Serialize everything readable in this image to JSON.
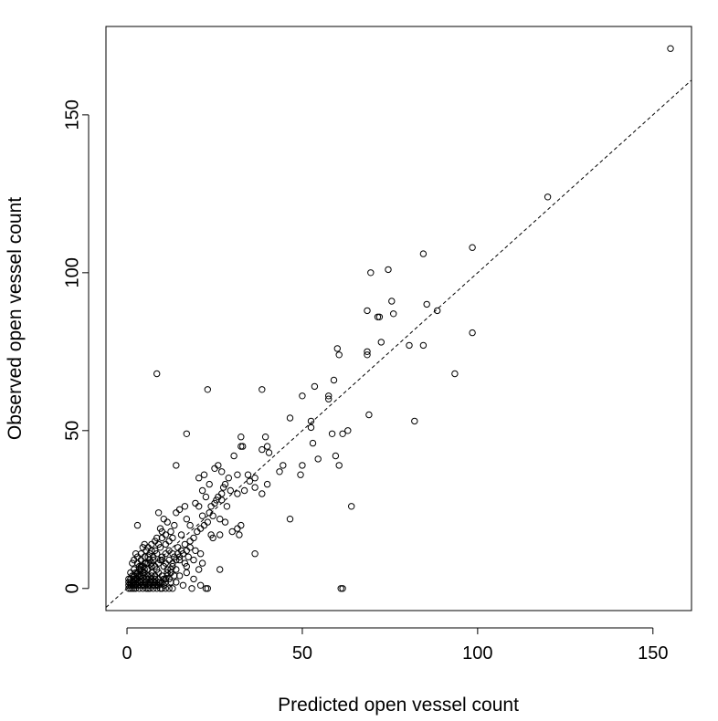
{
  "chart_data": {
    "type": "scatter",
    "xlabel": "Predicted open vessel count",
    "ylabel": "Observed open vessel count",
    "xlim": [
      -6,
      161
    ],
    "ylim": [
      -7,
      178
    ],
    "xticks": [
      0,
      50,
      100,
      150
    ],
    "yticks": [
      0,
      50,
      100,
      150
    ],
    "grid": false,
    "marker": "open-circle",
    "reference_line": {
      "type": "identity",
      "style": "dashed"
    },
    "series": [
      {
        "points": [
          [
            155,
            171
          ],
          [
            120,
            124
          ],
          [
            98.5,
            108
          ],
          [
            84.5,
            106
          ],
          [
            98.5,
            81
          ],
          [
            93.5,
            68
          ],
          [
            69.5,
            100
          ],
          [
            74.5,
            101
          ],
          [
            85.5,
            90
          ],
          [
            88.5,
            88
          ],
          [
            75.5,
            91
          ],
          [
            76,
            87
          ],
          [
            68.5,
            88
          ],
          [
            71.5,
            86
          ],
          [
            72,
            86
          ],
          [
            72.5,
            78
          ],
          [
            68.5,
            75
          ],
          [
            68.5,
            74
          ],
          [
            80.5,
            77
          ],
          [
            84.5,
            77
          ],
          [
            82,
            53
          ],
          [
            69,
            55
          ],
          [
            64,
            26
          ],
          [
            61,
            0
          ],
          [
            61.5,
            0
          ],
          [
            60,
            76
          ],
          [
            60.5,
            74
          ],
          [
            59,
            66
          ],
          [
            53.5,
            64
          ],
          [
            57.5,
            61
          ],
          [
            57.5,
            60
          ],
          [
            50,
            61
          ],
          [
            52.5,
            53
          ],
          [
            52.5,
            51
          ],
          [
            58.5,
            49
          ],
          [
            61.5,
            49
          ],
          [
            63,
            50
          ],
          [
            59.5,
            42
          ],
          [
            60.5,
            39
          ],
          [
            54.5,
            41
          ],
          [
            53,
            46
          ],
          [
            50,
            39
          ],
          [
            49.5,
            36
          ],
          [
            46.5,
            54
          ],
          [
            46.5,
            22
          ],
          [
            38.5,
            63
          ],
          [
            39.5,
            48
          ],
          [
            38.5,
            44
          ],
          [
            40,
            45
          ],
          [
            40.5,
            43
          ],
          [
            38.5,
            30
          ],
          [
            40,
            33
          ],
          [
            43.5,
            37
          ],
          [
            44.5,
            39
          ],
          [
            36.5,
            35
          ],
          [
            36.5,
            11
          ],
          [
            8.5,
            68
          ],
          [
            23,
            63
          ],
          [
            17,
            49
          ],
          [
            14,
            39
          ],
          [
            32.5,
            48
          ],
          [
            33,
            45
          ],
          [
            32.5,
            45
          ],
          [
            30.5,
            42
          ],
          [
            26,
            39
          ],
          [
            25,
            38
          ],
          [
            27,
            37
          ],
          [
            34.5,
            36
          ],
          [
            35,
            34
          ],
          [
            31.5,
            36
          ],
          [
            33.5,
            31
          ],
          [
            36.5,
            32
          ],
          [
            29.5,
            31
          ],
          [
            31.5,
            30
          ],
          [
            27.5,
            32
          ],
          [
            22,
            36
          ],
          [
            20.5,
            35
          ],
          [
            23.5,
            33
          ],
          [
            21.5,
            31
          ],
          [
            22.5,
            29
          ],
          [
            25.5,
            28
          ],
          [
            27,
            28
          ],
          [
            28.5,
            26
          ],
          [
            23.5,
            24
          ],
          [
            19.5,
            27
          ],
          [
            20.5,
            26
          ],
          [
            21.5,
            23
          ],
          [
            24.5,
            23
          ],
          [
            26.5,
            22
          ],
          [
            28,
            21
          ],
          [
            31.5,
            19
          ],
          [
            32.5,
            20
          ],
          [
            32,
            17
          ],
          [
            30,
            18
          ],
          [
            26.5,
            17
          ],
          [
            24.5,
            16
          ],
          [
            24,
            17
          ],
          [
            26.5,
            6
          ],
          [
            21,
            11
          ],
          [
            19.5,
            12
          ],
          [
            21.5,
            8
          ],
          [
            20.5,
            6
          ],
          [
            21,
            1
          ],
          [
            22.5,
            0
          ],
          [
            23,
            0
          ],
          [
            19,
            3
          ],
          [
            18.5,
            0
          ],
          [
            16,
            1
          ],
          [
            16.5,
            8
          ],
          [
            17,
            5
          ],
          [
            17.5,
            10
          ],
          [
            18,
            15
          ],
          [
            18,
            20
          ],
          [
            17,
            22
          ],
          [
            16.5,
            26
          ],
          [
            15,
            25
          ],
          [
            14,
            24
          ],
          [
            13.5,
            20
          ],
          [
            12.5,
            18
          ],
          [
            11.5,
            21
          ],
          [
            10.5,
            22
          ],
          [
            9,
            24
          ],
          [
            9.5,
            19
          ],
          [
            10,
            16
          ],
          [
            11,
            14
          ],
          [
            12,
            12
          ],
          [
            13,
            11
          ],
          [
            14.5,
            13
          ],
          [
            15,
            9
          ],
          [
            14,
            6
          ],
          [
            13.5,
            4
          ],
          [
            12.5,
            2
          ],
          [
            11.5,
            5
          ],
          [
            11,
            8
          ],
          [
            10,
            10
          ],
          [
            9.5,
            13
          ],
          [
            8.5,
            16
          ],
          [
            8,
            12
          ],
          [
            7.5,
            9
          ],
          [
            7,
            14
          ],
          [
            6.5,
            11
          ],
          [
            6,
            8
          ],
          [
            5.5,
            12
          ],
          [
            5,
            10
          ],
          [
            4.5,
            13
          ],
          [
            3,
            20
          ],
          [
            4,
            9
          ],
          [
            3.5,
            7
          ],
          [
            2.5,
            11
          ],
          [
            2,
            6
          ],
          [
            1.5,
            8
          ],
          [
            1,
            5
          ],
          [
            0.5,
            3
          ],
          [
            0.5,
            0
          ],
          [
            1,
            1
          ],
          [
            1.5,
            2
          ],
          [
            2,
            0
          ],
          [
            2.5,
            3
          ],
          [
            3,
            1
          ],
          [
            3.5,
            4
          ],
          [
            4,
            2
          ],
          [
            4.5,
            5
          ],
          [
            5,
            1
          ],
          [
            5.5,
            3
          ],
          [
            6,
            0
          ],
          [
            6.5,
            2
          ],
          [
            7,
            4
          ],
          [
            7.5,
            1
          ],
          [
            8,
            3
          ],
          [
            8.5,
            6
          ],
          [
            9,
            2
          ],
          [
            9.5,
            0
          ],
          [
            10,
            4
          ],
          [
            10.5,
            1
          ],
          [
            11,
            3
          ],
          [
            12,
            0
          ],
          [
            12.5,
            6
          ],
          [
            13,
            7
          ],
          [
            7,
            7
          ],
          [
            6,
            6
          ],
          [
            5,
            6
          ],
          [
            4,
            6
          ],
          [
            3,
            5
          ],
          [
            2,
            4
          ],
          [
            1,
            3
          ],
          [
            2,
            2
          ],
          [
            3,
            3
          ],
          [
            4,
            4
          ],
          [
            5,
            5
          ],
          [
            6,
            4
          ],
          [
            7,
            3
          ],
          [
            8,
            2
          ],
          [
            9,
            1
          ],
          [
            10,
            0
          ],
          [
            11,
            0
          ],
          [
            1.5,
            0
          ],
          [
            2.5,
            0
          ],
          [
            3.5,
            0
          ],
          [
            4.5,
            0
          ],
          [
            5.5,
            0
          ],
          [
            6.5,
            0
          ],
          [
            7.5,
            0
          ],
          [
            8.5,
            0
          ],
          [
            1,
            2
          ],
          [
            2,
            1
          ],
          [
            3,
            2
          ],
          [
            4,
            1
          ],
          [
            5,
            2
          ],
          [
            6,
            1
          ],
          [
            7,
            2
          ],
          [
            8,
            1
          ],
          [
            9,
            3
          ],
          [
            1.5,
            4
          ],
          [
            2.5,
            5
          ],
          [
            3.5,
            6
          ],
          [
            4.5,
            7
          ],
          [
            5.5,
            8
          ],
          [
            6.5,
            9
          ],
          [
            7.5,
            10
          ],
          [
            8.5,
            11
          ],
          [
            9.5,
            9
          ],
          [
            10.5,
            7
          ],
          [
            11.5,
            6
          ],
          [
            12.5,
            5
          ],
          [
            13.5,
            10
          ],
          [
            14.5,
            11
          ],
          [
            15.5,
            12
          ],
          [
            16.5,
            14
          ],
          [
            15.5,
            17
          ],
          [
            13,
            16
          ],
          [
            12,
            15
          ],
          [
            11,
            17
          ],
          [
            10,
            18
          ],
          [
            9,
            14
          ],
          [
            8,
            15
          ],
          [
            7,
            12
          ],
          [
            6,
            13
          ],
          [
            5,
            14
          ],
          [
            4,
            11
          ],
          [
            3,
            10
          ],
          [
            2,
            9
          ],
          [
            3,
            8
          ],
          [
            4,
            7
          ],
          [
            5,
            8
          ],
          [
            6,
            10
          ],
          [
            7,
            8
          ],
          [
            8,
            7
          ],
          [
            9,
            8
          ],
          [
            10,
            9
          ],
          [
            11,
            11
          ],
          [
            12,
            9
          ],
          [
            13,
            8
          ],
          [
            14,
            9
          ],
          [
            15,
            10
          ],
          [
            16,
            11
          ],
          [
            17,
            12
          ],
          [
            18,
            13
          ],
          [
            19,
            16
          ],
          [
            20,
            18
          ],
          [
            21,
            19
          ],
          [
            22,
            20
          ],
          [
            23,
            21
          ],
          [
            24,
            26
          ],
          [
            25,
            27
          ],
          [
            26,
            29
          ],
          [
            27,
            30
          ],
          [
            28,
            33
          ],
          [
            29,
            35
          ],
          [
            19,
            9
          ],
          [
            17,
            7
          ],
          [
            15,
            4
          ],
          [
            14,
            2
          ],
          [
            13,
            0
          ],
          [
            12,
            3
          ],
          [
            11,
            2
          ],
          [
            10,
            2
          ],
          [
            9,
            5
          ],
          [
            8,
            4
          ],
          [
            7,
            5
          ],
          [
            6,
            3
          ],
          [
            5,
            4
          ],
          [
            4,
            3
          ],
          [
            3,
            4
          ],
          [
            2,
            3
          ],
          [
            1,
            0
          ],
          [
            0.5,
            1
          ],
          [
            0.5,
            2
          ],
          [
            1.5,
            1
          ],
          [
            2.5,
            1
          ],
          [
            3.5,
            2
          ],
          [
            4.5,
            1
          ],
          [
            5.5,
            2
          ],
          [
            6.5,
            1
          ],
          [
            7.5,
            2
          ],
          [
            8.5,
            1
          ],
          [
            9.5,
            2
          ],
          [
            10.5,
            3
          ],
          [
            11.5,
            4
          ]
        ]
      }
    ]
  }
}
